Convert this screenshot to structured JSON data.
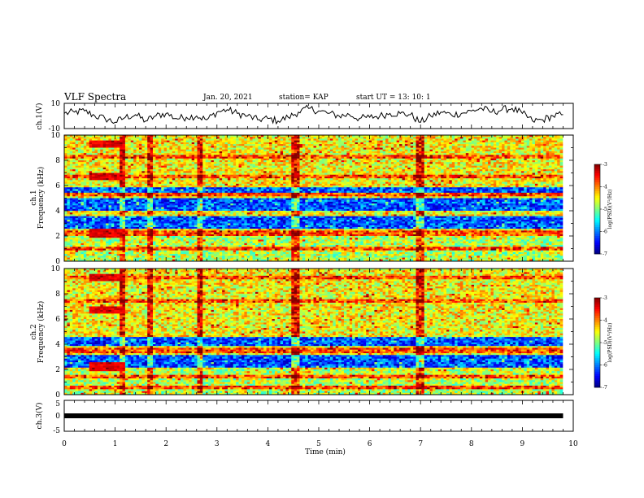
{
  "header": {
    "title": "VLF Spectra",
    "date": "Jan. 20, 2021",
    "station": "station= KAP",
    "start": "start  UT =   13: 10: 1"
  },
  "chart_data": [
    {
      "type": "line",
      "panel": "ch1-waveform",
      "ylabel": "ch.1(V)",
      "ylim": [
        -10,
        10
      ],
      "yticks": [
        "10",
        "-10"
      ],
      "xlim": [
        0,
        10
      ],
      "x": [
        0.0,
        0.2,
        0.4,
        0.6,
        0.8,
        1.0,
        1.2,
        1.4,
        1.6,
        1.8,
        2.0,
        2.2,
        2.4,
        2.6,
        2.8,
        3.0,
        3.2,
        3.4,
        3.6,
        3.8,
        4.0,
        4.2,
        4.4,
        4.6,
        4.8,
        5.0,
        5.2,
        5.4,
        5.6,
        5.8,
        6.0,
        6.2,
        6.4,
        6.6,
        6.8,
        7.0,
        7.2,
        7.4,
        7.6,
        7.8,
        8.0,
        8.2,
        8.4,
        8.6,
        8.8,
        9.0,
        9.2,
        9.4,
        9.6,
        9.8
      ],
      "values": [
        2,
        3,
        4,
        0,
        -2,
        -5,
        -1,
        1,
        -4,
        0,
        2,
        -2,
        -1,
        0,
        -3,
        3,
        5,
        2,
        0,
        -3,
        -2,
        -4,
        -1,
        3,
        6,
        4,
        2,
        0,
        1,
        -2,
        -1,
        0,
        2,
        2,
        1,
        -5,
        0,
        3,
        1,
        2,
        4,
        6,
        3,
        5,
        6,
        2,
        -4,
        -3,
        0,
        1
      ]
    },
    {
      "type": "heatmap",
      "panel": "ch1-spectrogram",
      "ylabel": "Frequency (kHz)",
      "channel_label": "ch.1",
      "ylim": [
        0,
        10
      ],
      "yticks": [
        "0",
        "2",
        "4",
        "6",
        "8",
        "10"
      ],
      "xlim": [
        0,
        10
      ],
      "colorbar": {
        "label": "log(PSD)(V²/Hz)",
        "range": [
          -7,
          -3
        ],
        "ticks": [
          "-3",
          "-4",
          "-5",
          "-6",
          "-7"
        ]
      },
      "features": {
        "blue_bands_khz": [
          [
            2.6,
            3.6
          ],
          [
            4.0,
            5.0
          ],
          [
            5.5,
            5.9
          ]
        ],
        "line_khz": [
          1.0,
          2.2,
          5.3,
          6.7,
          8.3
        ],
        "burst_min": [
          1.15,
          1.7,
          2.65,
          4.55,
          7.0
        ]
      }
    },
    {
      "type": "heatmap",
      "panel": "ch2-spectrogram",
      "ylabel": "Frequency (kHz)",
      "channel_label": "ch.2",
      "ylim": [
        0,
        10
      ],
      "yticks": [
        "0",
        "2",
        "4",
        "6",
        "8",
        "10"
      ],
      "xlim": [
        0,
        10
      ],
      "colorbar": {
        "label": "log(PSD)(V²/Hz)",
        "range": [
          -7,
          -3
        ],
        "ticks": [
          "-3",
          "-4",
          "-5",
          "-6",
          "-7"
        ]
      },
      "features": {
        "blue_bands_khz": [
          [
            2.1,
            3.2
          ],
          [
            3.8,
            4.6
          ]
        ],
        "line_khz": [
          0.6,
          1.4,
          3.5,
          7.4,
          9.3
        ],
        "burst_min": [
          1.15,
          1.7,
          2.65,
          4.55,
          7.0
        ]
      }
    },
    {
      "type": "line",
      "panel": "ch3-waveform",
      "ylabel": "ch.3(V)",
      "ylim": [
        -5,
        5
      ],
      "yticks": [
        "5",
        "0",
        "-5"
      ],
      "xlim": [
        0,
        10
      ],
      "xlabel": "Time (min)",
      "xticks": [
        "0",
        "1",
        "2",
        "3",
        "4",
        "5",
        "6",
        "7",
        "8",
        "9",
        "10"
      ],
      "x": [
        0,
        9.8
      ],
      "values": [
        0,
        0
      ]
    }
  ]
}
